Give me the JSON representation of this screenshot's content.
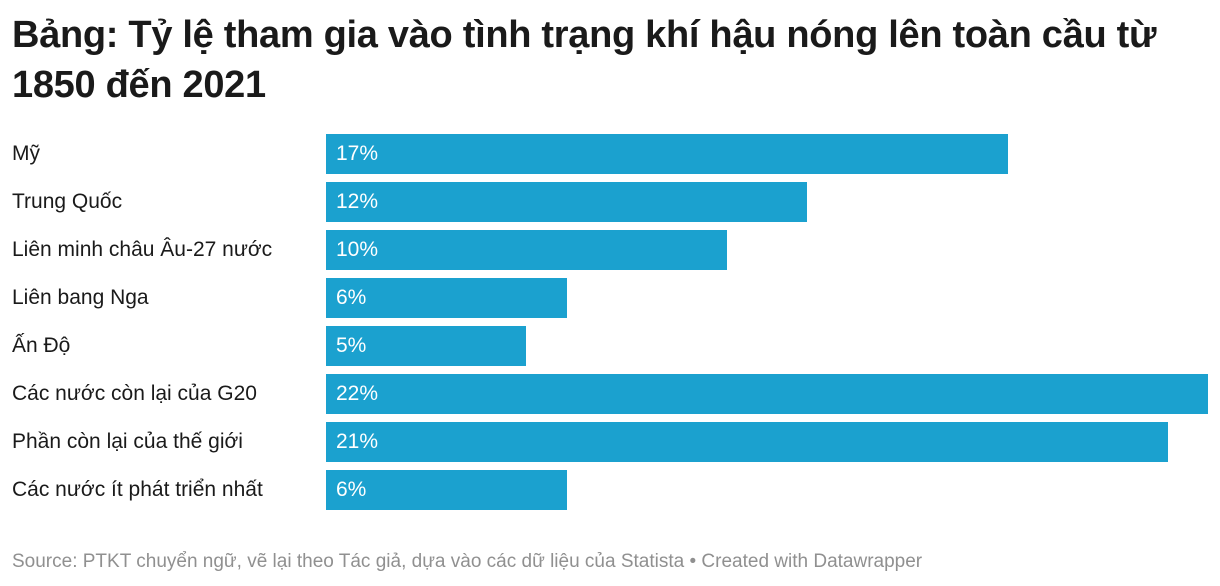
{
  "chart_data": {
    "type": "bar",
    "orientation": "horizontal",
    "title": "Bảng: Tỷ lệ tham gia vào tình trạng khí hậu nóng lên toàn cầu từ 1850 đến 2021",
    "categories": [
      "Mỹ",
      "Trung Quốc",
      "Liên minh châu Âu-27 nước",
      "Liên bang Nga",
      "Ấn Độ",
      "Các nước còn lại của G20",
      "Phần còn lại của thế giới",
      "Các nước ít phát triển nhất"
    ],
    "values": [
      17,
      12,
      10,
      6,
      5,
      22,
      21,
      6
    ],
    "value_labels": [
      "17%",
      "12%",
      "10%",
      "6%",
      "5%",
      "22%",
      "21%",
      "6%"
    ],
    "unit": "%",
    "xlim": [
      0,
      22
    ],
    "grid": false,
    "legend": "none",
    "bar_color": "#1ba1cf"
  },
  "footer": {
    "source": "Source: PTKT chuyển ngữ, vẽ lại theo Tác giả, dựa vào các dữ liệu của Statista • Created with Datawrapper"
  }
}
